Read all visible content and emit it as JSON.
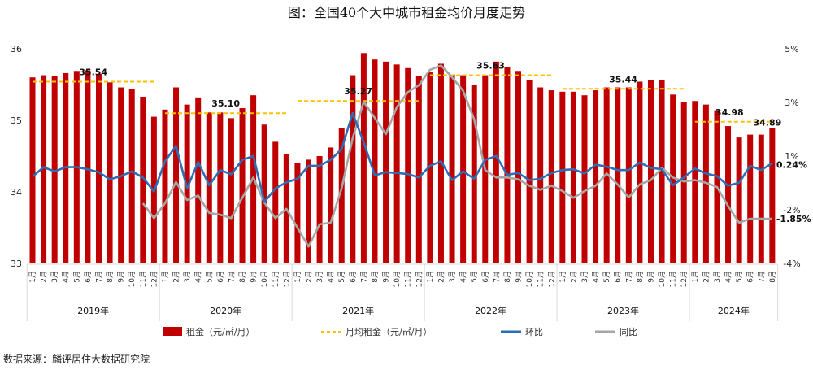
{
  "chart_data": {
    "type": "bar+line",
    "title": "图：全国40个大中城市租金均价月度走势",
    "years": [
      "2019年",
      "2020年",
      "2021年",
      "2022年",
      "2023年",
      "2024年"
    ],
    "month_labels": [
      "1月",
      "2月",
      "3月",
      "4月",
      "5月",
      "6月",
      "7月",
      "8月",
      "9月",
      "10月",
      "11月",
      "12月"
    ],
    "months_per_year": [
      12,
      12,
      12,
      12,
      12,
      8
    ],
    "left_axis": {
      "ticks": [
        "33",
        "34",
        "35",
        "36"
      ],
      "ylim": [
        33,
        36
      ]
    },
    "right_axis": {
      "ticks": [
        "5%",
        "3%",
        "1%",
        "-2%",
        "-4%"
      ]
    },
    "series": [
      {
        "name": "租金（元/㎡/月）",
        "type": "bar",
        "axis": "left",
        "color": "#C00000",
        "values": [
          35.6,
          35.63,
          35.62,
          35.66,
          35.69,
          35.7,
          35.65,
          35.53,
          35.46,
          35.44,
          35.33,
          35.05,
          35.15,
          35.46,
          35.22,
          35.32,
          35.11,
          35.11,
          35.03,
          35.17,
          35.35,
          34.94,
          34.7,
          34.53,
          34.4,
          34.45,
          34.5,
          34.62,
          34.89,
          35.63,
          35.94,
          35.85,
          35.82,
          35.78,
          35.73,
          35.62,
          35.67,
          35.79,
          35.64,
          35.63,
          35.5,
          35.63,
          35.82,
          35.75,
          35.69,
          35.56,
          35.46,
          35.42,
          35.4,
          35.4,
          35.35,
          35.42,
          35.46,
          35.46,
          35.46,
          35.54,
          35.56,
          35.56,
          35.36,
          35.26,
          35.27,
          35.22,
          35.14,
          34.92,
          34.76,
          34.8,
          34.8,
          34.89
        ]
      },
      {
        "name": "月均租金（元/㎡/月）",
        "type": "dashed",
        "axis": "left",
        "color": "#FFC000",
        "values": [
          35.54,
          35.1,
          35.27,
          35.63,
          35.44,
          34.98
        ],
        "labels": [
          "35.54",
          "35.10",
          "35.27",
          "35.63",
          "35.44",
          "34.98"
        ]
      },
      {
        "name": "环比",
        "type": "line",
        "axis": "right",
        "color": "#2E6DB4",
        "unit": "%",
        "values": [
          -0.27,
          0.09,
          -0.07,
          0.09,
          0.09,
          0.01,
          -0.1,
          -0.37,
          -0.25,
          -0.07,
          -0.3,
          -0.83,
          0.31,
          0.89,
          -0.71,
          0.28,
          -0.59,
          -0.02,
          -0.18,
          0.36,
          0.51,
          -1.22,
          -0.71,
          -0.48,
          -0.35,
          0.14,
          0.14,
          0.36,
          0.77,
          2.12,
          1.02,
          -0.22,
          -0.1,
          -0.13,
          -0.17,
          -0.3,
          0.14,
          0.31,
          -0.4,
          -0.07,
          -0.35,
          0.36,
          0.51,
          -0.2,
          -0.13,
          -0.4,
          -0.35,
          -0.13,
          -0.02,
          0.01,
          -0.15,
          0.18,
          0.11,
          -0.02,
          -0.02,
          0.26,
          0.06,
          0.01,
          -0.59,
          -0.3,
          0.04,
          -0.15,
          -0.25,
          -0.61,
          -0.5,
          0.14,
          -0.02,
          0.24
        ],
        "end_label": "0.24%"
      },
      {
        "name": "同比",
        "type": "line",
        "axis": "right",
        "color": "#A6A6A6",
        "unit": "%",
        "values": [
          null,
          null,
          null,
          null,
          null,
          null,
          null,
          null,
          null,
          null,
          -1.27,
          -1.83,
          -1.27,
          -0.47,
          -1.15,
          -0.98,
          -1.63,
          -1.7,
          -1.83,
          -1.06,
          -0.3,
          -1.25,
          -1.83,
          -1.48,
          -2.19,
          -2.9,
          -2.06,
          -2.0,
          -0.71,
          1.18,
          2.55,
          1.94,
          1.33,
          2.35,
          2.91,
          3.17,
          3.75,
          3.91,
          3.47,
          2.96,
          1.89,
          -0.02,
          -0.3,
          -0.3,
          -0.37,
          -0.61,
          -0.76,
          -0.61,
          -0.81,
          -1.06,
          -0.81,
          -0.61,
          -0.15,
          -0.56,
          -1.05,
          -0.56,
          -0.4,
          0.06,
          -0.3,
          -0.45,
          -0.4,
          -0.5,
          -0.66,
          -1.37,
          -2.0,
          -1.85,
          -1.85,
          -1.85
        ],
        "end_label": "-1.85%"
      }
    ],
    "legend": {
      "position": "bottom",
      "items": [
        "租金（元/㎡/月）",
        "月均租金（元/㎡/月）",
        "环比",
        "同比"
      ]
    }
  },
  "source": "数据来源：麟评居住大数据研究院"
}
